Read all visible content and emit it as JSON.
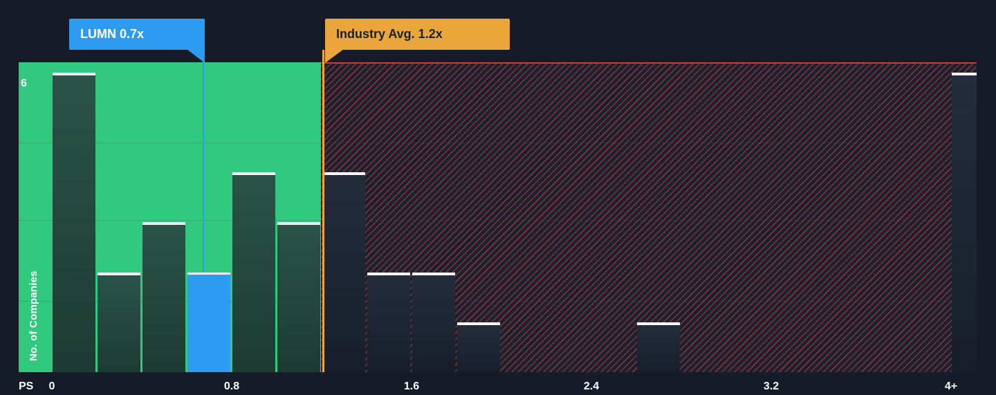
{
  "chart_data": {
    "type": "bar",
    "ylabel": "No. of Companies",
    "xlabel": "PS",
    "y_tick_labels": [
      "6"
    ],
    "x_tick_labels": [
      "0",
      "0.8",
      "1.6",
      "2.4",
      "3.2",
      "4+"
    ],
    "x_tick_values": [
      0,
      0.8,
      1.6,
      2.4,
      3.2,
      4
    ],
    "ylim": [
      0,
      6.2
    ],
    "xlim": [
      0,
      4.2
    ],
    "bin_width": 0.2,
    "grid": "faint horizontal lines",
    "legend_position": "none",
    "bars": [
      {
        "x_start": 0.0,
        "count": 6,
        "zone": "below_average"
      },
      {
        "x_start": 0.2,
        "count": 2,
        "zone": "below_average"
      },
      {
        "x_start": 0.4,
        "count": 3,
        "zone": "below_average"
      },
      {
        "x_start": 0.6,
        "count": 2,
        "zone": "below_average",
        "highlight": "company"
      },
      {
        "x_start": 0.8,
        "count": 4,
        "zone": "below_average"
      },
      {
        "x_start": 1.0,
        "count": 3,
        "zone": "below_average"
      },
      {
        "x_start": 1.2,
        "count": 4,
        "zone": "above_average"
      },
      {
        "x_start": 1.4,
        "count": 2,
        "zone": "above_average"
      },
      {
        "x_start": 1.6,
        "count": 2,
        "zone": "above_average"
      },
      {
        "x_start": 1.8,
        "count": 1,
        "zone": "above_average"
      },
      {
        "x_start": 2.6,
        "count": 1,
        "zone": "above_average"
      },
      {
        "x_start": 4.0,
        "count": 6,
        "zone": "above_average"
      }
    ],
    "annotations": [
      {
        "id": "company",
        "label": "LUMN 0.7x",
        "value": 0.7,
        "color": "#2d9cf0",
        "text_color": "#ffffff"
      },
      {
        "id": "industry",
        "label": "Industry Avg. 1.2x",
        "value": 1.2,
        "color": "#eba63b",
        "text_color": "#19202e"
      }
    ],
    "regions": [
      {
        "id": "below_average",
        "from": 0,
        "to": 1.2,
        "style": "solid",
        "fill": "#30c97d"
      },
      {
        "id": "above_average",
        "from": 1.2,
        "to": 4.2,
        "style": "hatched",
        "hatch_color": "#e53e3a"
      }
    ]
  },
  "colors": {
    "background": "#151c28",
    "bar_below_average": "#24473c",
    "bar_above_average": "#1d2533",
    "bar_cap": "#ffffff",
    "company_bar": "#2d9cf0",
    "industry_line": "#eba63b",
    "axis_text": "#ffffff"
  }
}
